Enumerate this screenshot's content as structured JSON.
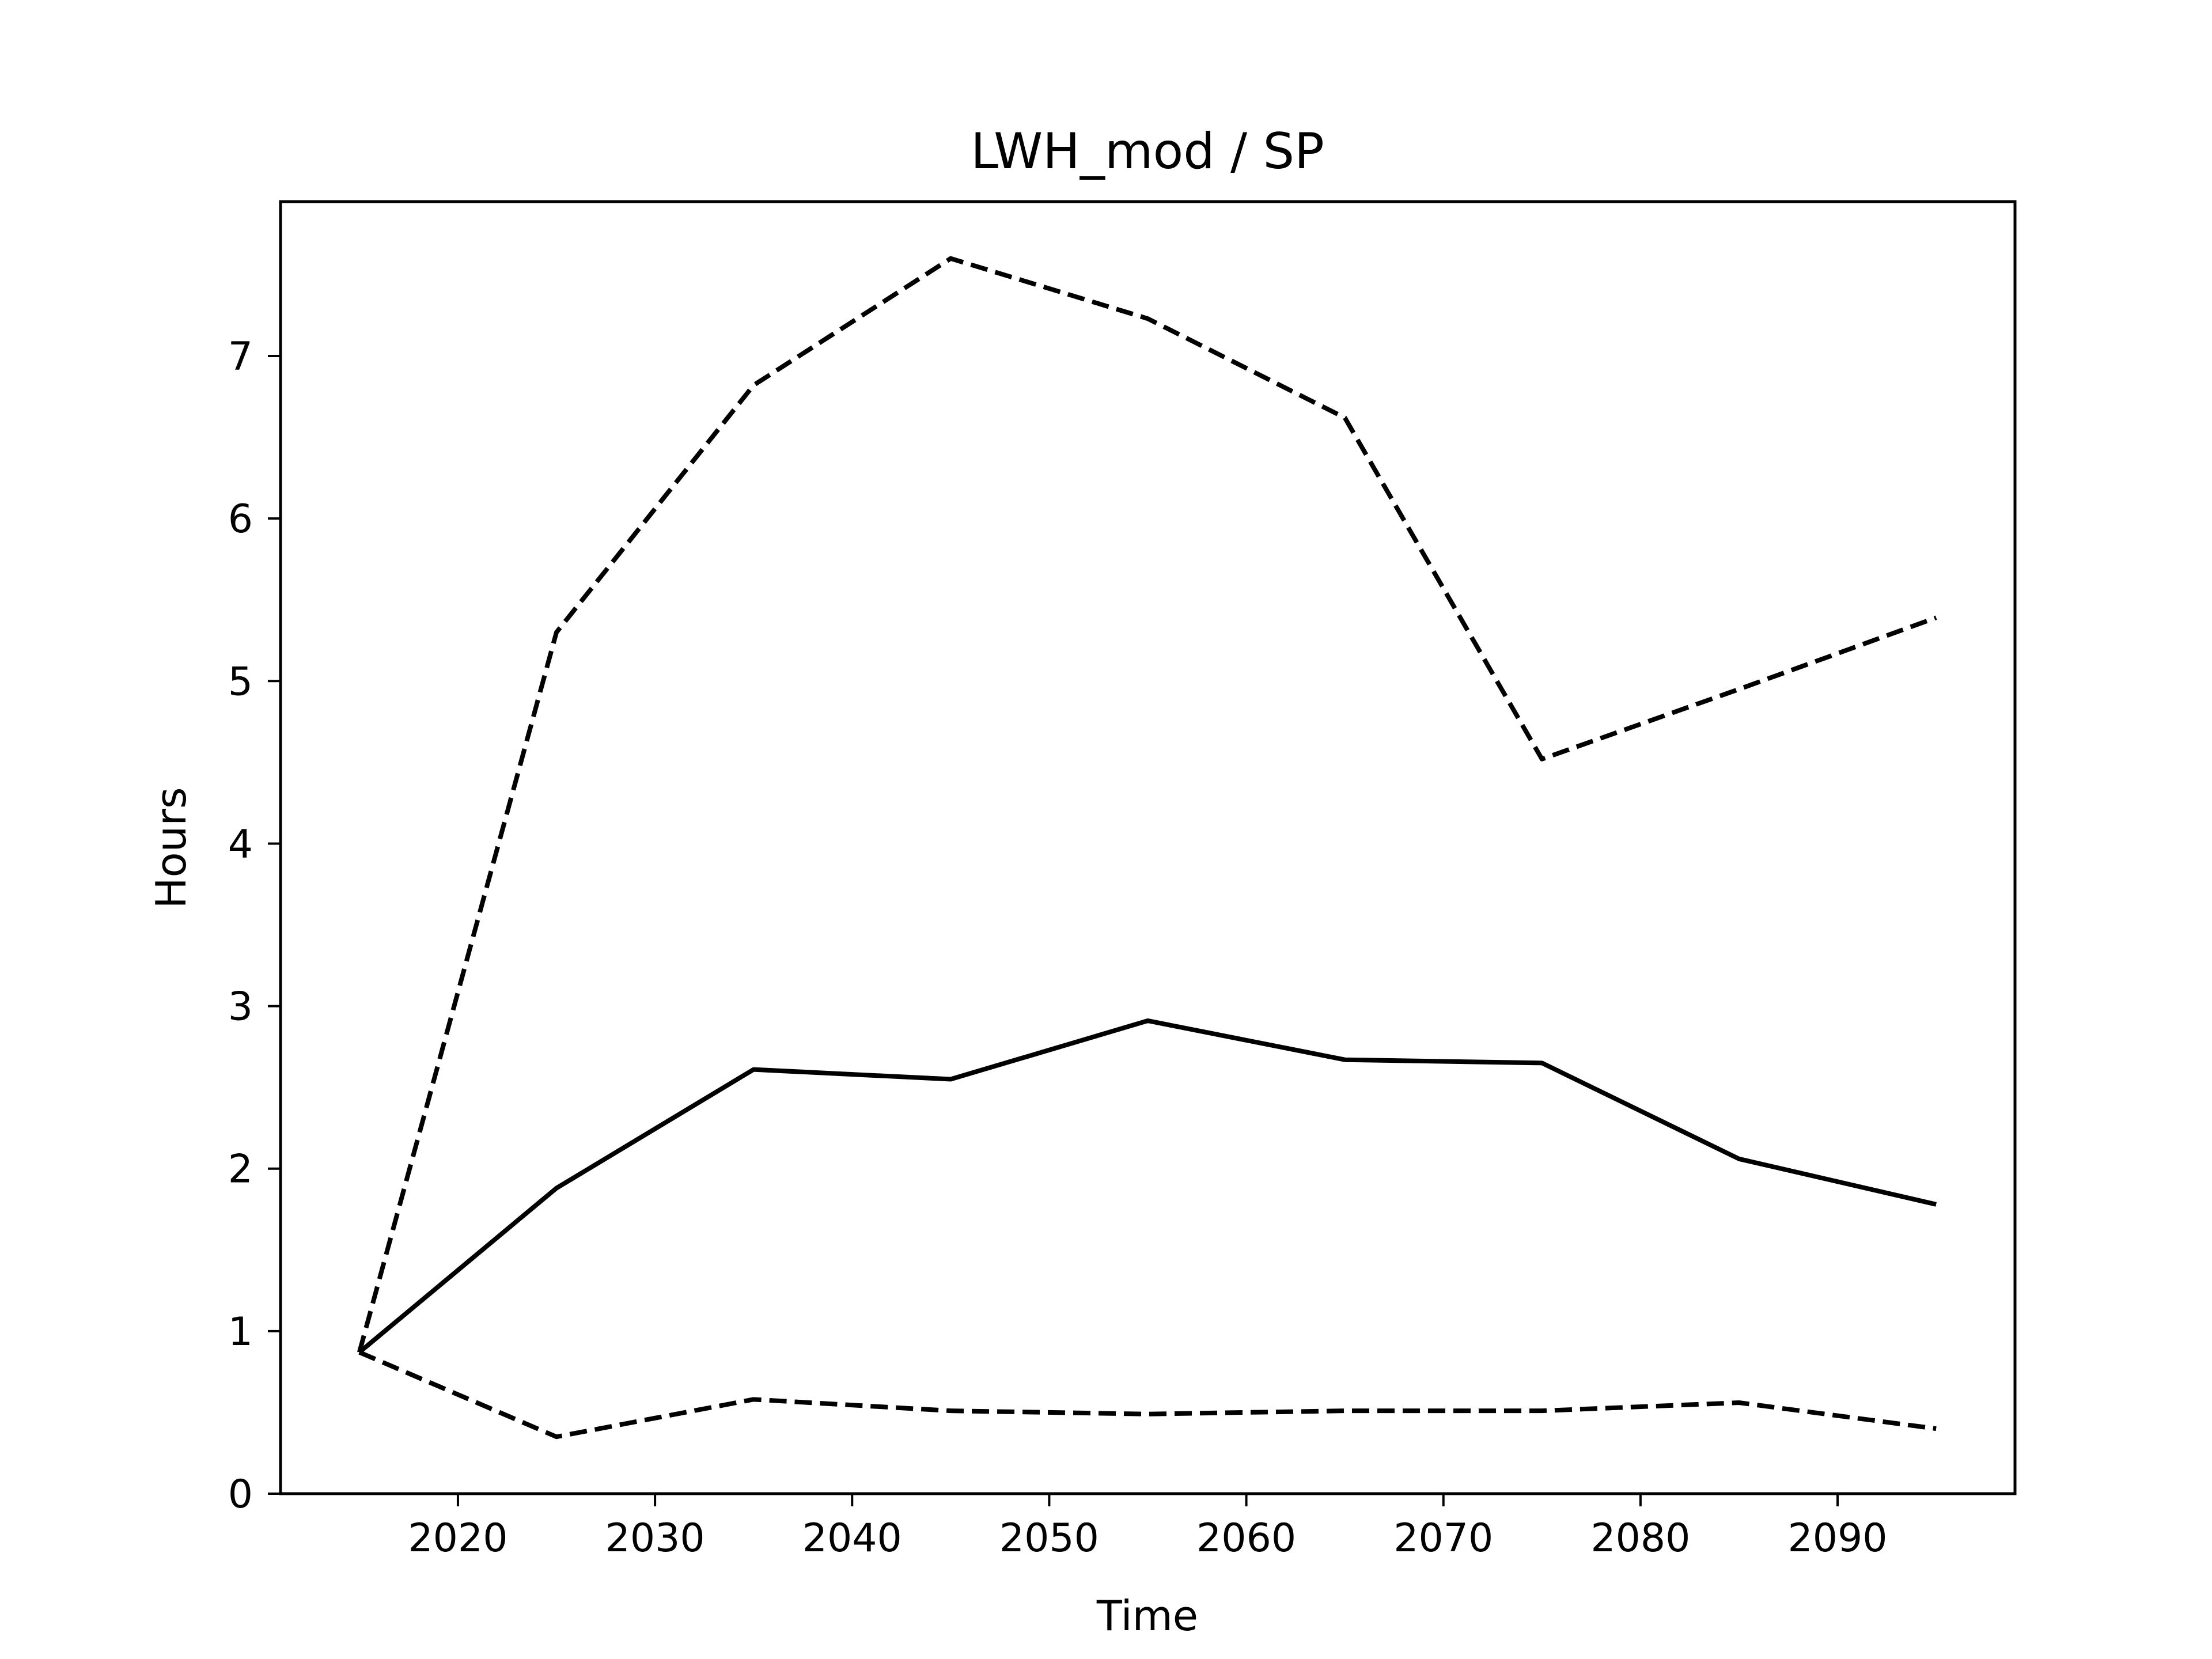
{
  "chart_data": {
    "type": "line",
    "title": "LWH_mod / SP",
    "xlabel": "Time",
    "ylabel": "Hours",
    "xlim": [
      2011,
      2099
    ],
    "ylim": [
      0,
      7.95
    ],
    "xticks": [
      2020,
      2030,
      2040,
      2050,
      2060,
      2070,
      2080,
      2090
    ],
    "yticks": [
      0,
      1,
      2,
      3,
      4,
      5,
      6,
      7
    ],
    "grid": false,
    "legend": "none",
    "x": [
      2015,
      2025,
      2035,
      2045,
      2055,
      2065,
      2075,
      2085,
      2095
    ],
    "series": [
      {
        "style": "dashed",
        "color": "#000000",
        "values": [
          0.87,
          5.3,
          6.82,
          7.6,
          7.23,
          6.62,
          4.52,
          4.95,
          5.39
        ]
      },
      {
        "style": "solid",
        "color": "#000000",
        "values": [
          0.87,
          1.88,
          2.61,
          2.55,
          2.91,
          2.67,
          2.65,
          2.06,
          1.78
        ]
      },
      {
        "style": "dashed",
        "color": "#000000",
        "values": [
          0.87,
          0.35,
          0.58,
          0.51,
          0.49,
          0.51,
          0.51,
          0.56,
          0.4
        ]
      }
    ]
  }
}
